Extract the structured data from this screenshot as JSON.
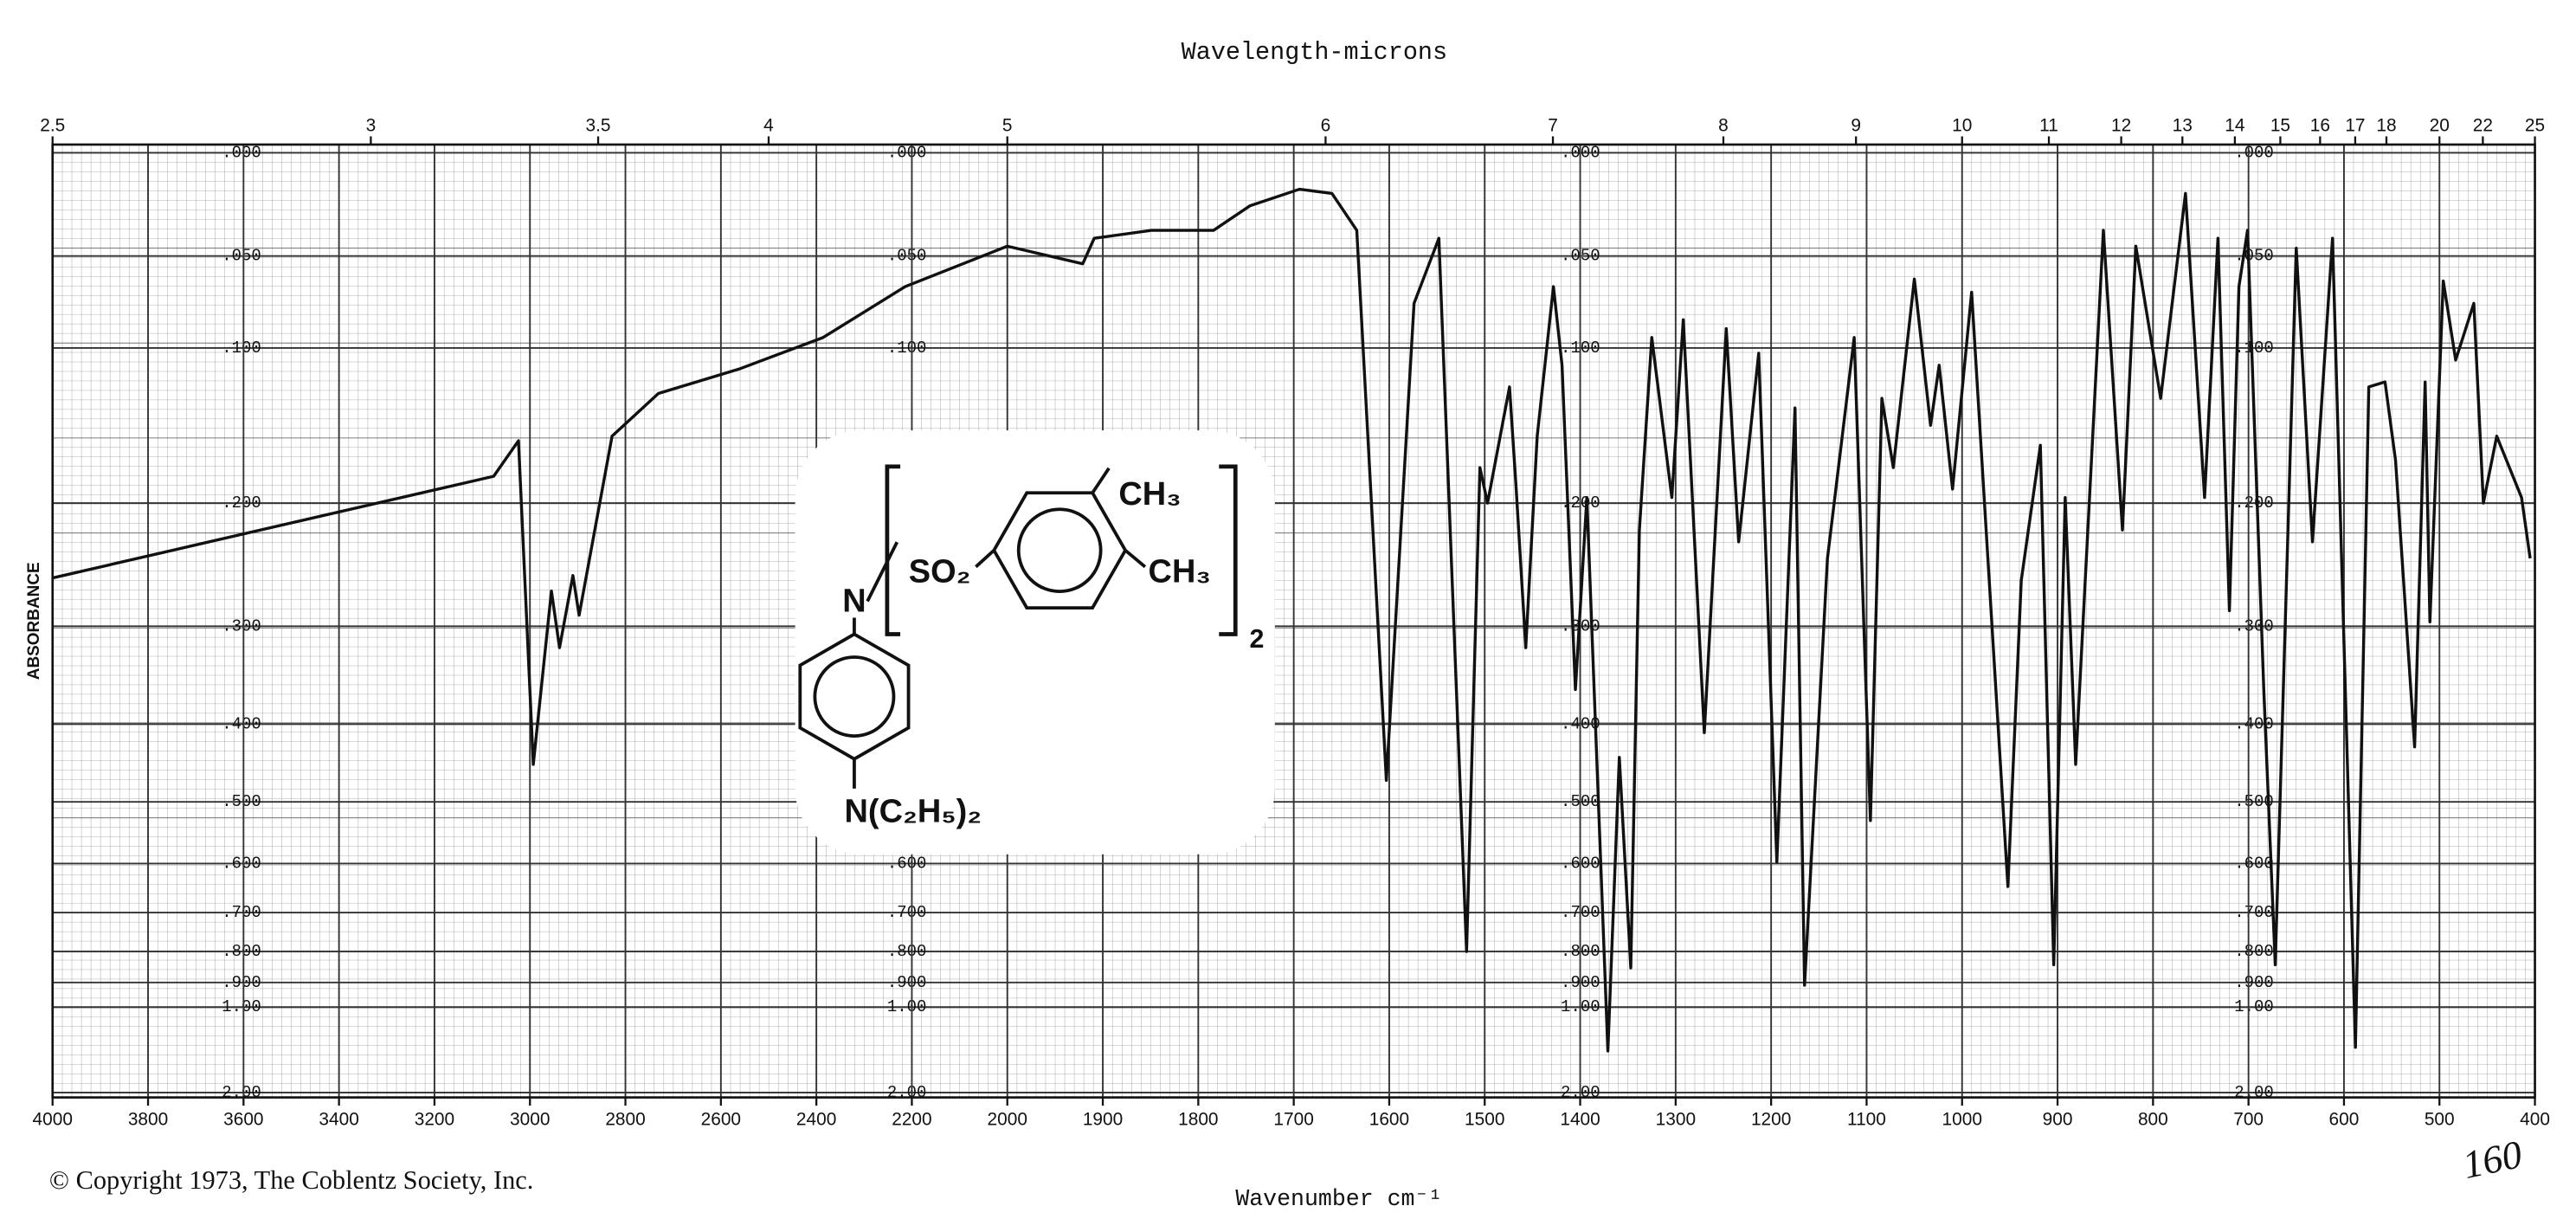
{
  "chart_data": {
    "type": "line",
    "title": "Wavelength-microns",
    "x_label": "Wavenumber cm⁻¹",
    "y_label": "ABSORBANCE",
    "color": "#111111",
    "grid": true,
    "xlim": [
      4000,
      400
    ],
    "x_scale_change": 2000,
    "xticks": [
      4000,
      3800,
      3600,
      3400,
      3200,
      3000,
      2800,
      2600,
      2400,
      2200,
      2000,
      1900,
      1800,
      1700,
      1600,
      1500,
      1400,
      1300,
      1200,
      1100,
      1000,
      900,
      800,
      700,
      600,
      500,
      400
    ],
    "x2ticks": [
      2.5,
      3,
      3.5,
      4,
      5,
      6,
      7,
      8,
      9,
      10,
      11,
      12,
      13,
      14,
      15,
      16,
      17,
      18,
      20,
      22,
      25
    ],
    "ylim": [
      0,
      2
    ],
    "yscale": "transmittance",
    "yticks": [
      {
        "value": 0,
        "label": ".000"
      },
      {
        "value": 0.05,
        "label": ".050"
      },
      {
        "value": 0.1,
        "label": ".100"
      },
      {
        "value": 0.2,
        "label": ".200"
      },
      {
        "value": 0.3,
        "label": ".300"
      },
      {
        "value": 0.4,
        "label": ".400"
      },
      {
        "value": 0.5,
        "label": ".500"
      },
      {
        "value": 0.6,
        "label": ".600"
      },
      {
        "value": 0.7,
        "label": ".700"
      },
      {
        "value": 0.8,
        "label": ".800"
      },
      {
        "value": 0.9,
        "label": ".900"
      },
      {
        "value": 1,
        "label": "1.00"
      },
      {
        "value": 2,
        "label": "2.00"
      }
    ],
    "x": [
      4000,
      3076,
      3024,
      2993,
      2955,
      2938,
      2910,
      2897,
      2828,
      2731,
      2559,
      2386,
      2214,
      2000,
      1921,
      1909,
      1849,
      1784,
      1746,
      1694,
      1660,
      1634,
      1603,
      1574,
      1548,
      1519,
      1505,
      1497,
      1474,
      1467,
      1457,
      1445,
      1428,
      1419,
      1405,
      1393,
      1371,
      1359,
      1347,
      1338,
      1325,
      1304,
      1292,
      1270,
      1247,
      1234,
      1213,
      1194,
      1175,
      1165,
      1141,
      1113,
      1096,
      1084,
      1072,
      1050,
      1033,
      1024,
      1010,
      990,
      952,
      938,
      918,
      904,
      892,
      881,
      852,
      832,
      818,
      792,
      766,
      746,
      732,
      720,
      710,
      701,
      684,
      672,
      650,
      633,
      612,
      588,
      574,
      557,
      546,
      526,
      515,
      510,
      496,
      483,
      464,
      454,
      440,
      414,
      405
    ],
    "values": [
      0.258,
      0.181,
      0.157,
      0.449,
      0.269,
      0.32,
      0.256,
      0.29,
      0.154,
      0.127,
      0.112,
      0.094,
      0.066,
      0.045,
      0.054,
      0.041,
      0.037,
      0.037,
      0.025,
      0.017,
      0.019,
      0.037,
      0.47,
      0.075,
      0.041,
      0.8,
      0.175,
      0.2,
      0.123,
      0.19,
      0.32,
      0.154,
      0.066,
      0.11,
      0.362,
      0.196,
      1.27,
      0.44,
      0.85,
      0.22,
      0.094,
      0.196,
      0.084,
      0.41,
      0.089,
      0.229,
      0.103,
      0.597,
      0.136,
      0.91,
      0.242,
      0.094,
      0.528,
      0.13,
      0.175,
      0.062,
      0.147,
      0.11,
      0.19,
      0.069,
      0.644,
      0.26,
      0.16,
      0.84,
      0.196,
      0.449,
      0.037,
      0.22,
      0.045,
      0.13,
      0.019,
      0.196,
      0.041,
      0.286,
      0.066,
      0.037,
      0.362,
      0.84,
      0.046,
      0.229,
      0.041,
      1.24,
      0.123,
      0.12,
      0.17,
      0.427,
      0.12,
      0.296,
      0.063,
      0.107,
      0.075,
      0.2,
      0.154,
      0.196,
      0.242
    ],
    "copyright": "© Copyright 1973, The Coblentz Society, Inc.",
    "annotation": "160",
    "structure": {
      "n_top": "N",
      "so2": "SO₂",
      "ch3_top": "CH₃",
      "ch3_right": "CH₃",
      "multiplier": "2",
      "amine": "N(C₂H₅)₂"
    }
  }
}
